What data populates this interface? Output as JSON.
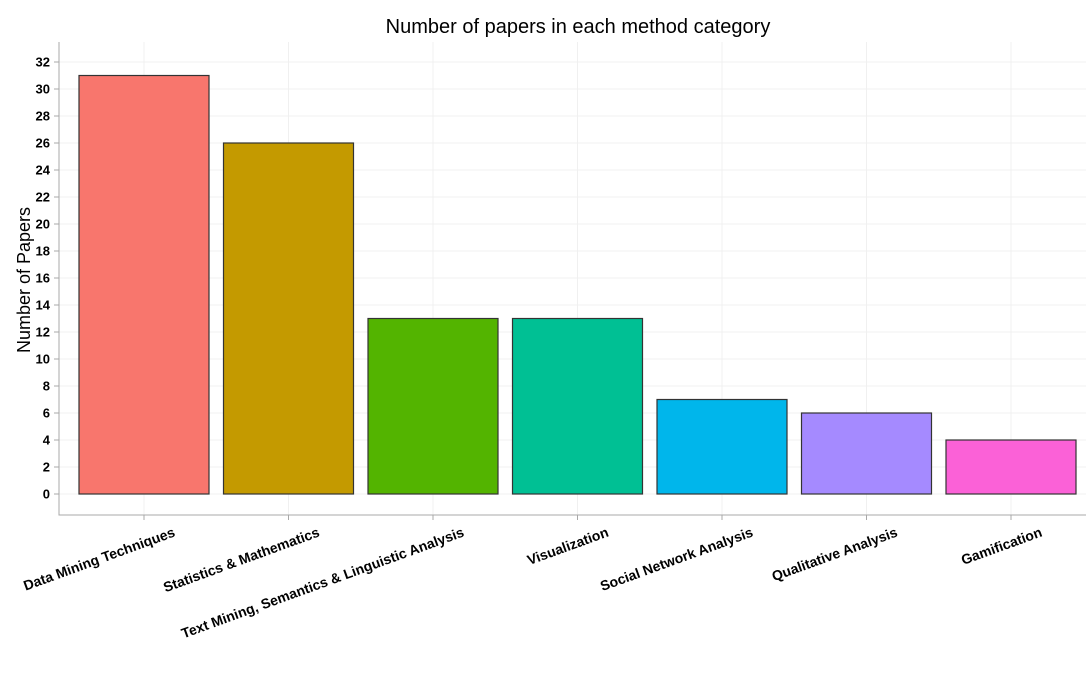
{
  "chart_data": {
    "type": "bar",
    "title": "Number of papers in each method category",
    "xlabel": "",
    "ylabel": "Number of Papers",
    "ylim": [
      0,
      32
    ],
    "yticks": [
      0,
      2,
      4,
      6,
      8,
      10,
      12,
      14,
      16,
      18,
      20,
      22,
      24,
      26,
      28,
      30,
      32
    ],
    "grid": true,
    "legend": "none",
    "categories": [
      "Data Mining Techniques",
      "Statistics & Mathematics",
      "Text Mining, Semantics & Linguistic Analysis",
      "Visualization",
      "Social Network Analysis",
      "Qualitative Analysis",
      "Gamification"
    ],
    "values": [
      31,
      26,
      13,
      13,
      7,
      6,
      4
    ],
    "colors": [
      "#F8766D",
      "#C49A00",
      "#53B400",
      "#00C094",
      "#00B6EB",
      "#A58AFF",
      "#FB61D7"
    ]
  }
}
